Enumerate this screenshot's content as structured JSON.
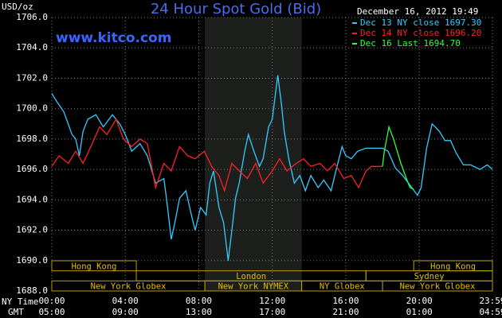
{
  "chart_data": {
    "type": "line",
    "title": "24 Hour Spot Gold (Bid)",
    "ylabel": "USD/oz",
    "timestamp": "December 16, 2012 19:49",
    "watermark": "www.kitco.com",
    "xlabel": "NY Time",
    "x2label": "GMT",
    "xlim": [
      0,
      23.983
    ],
    "xticks": [
      {
        "value": 0,
        "label": "00:00"
      },
      {
        "value": 4,
        "label": "04:00"
      },
      {
        "value": 8,
        "label": "08:00"
      },
      {
        "value": 12,
        "label": "12:00"
      },
      {
        "value": 16,
        "label": "16:00"
      },
      {
        "value": 20,
        "label": "20:00"
      },
      {
        "value": 23.983,
        "label": "23:59"
      }
    ],
    "x2ticks": [
      {
        "value": 0,
        "label": "05:00"
      },
      {
        "value": 4,
        "label": "09:00"
      },
      {
        "value": 8,
        "label": "13:00"
      },
      {
        "value": 12,
        "label": "17:00"
      },
      {
        "value": 16,
        "label": "21:00"
      },
      {
        "value": 20,
        "label": "01:00"
      },
      {
        "value": 23.983,
        "label": "04:59"
      }
    ],
    "ylim": [
      1688,
      1706
    ],
    "yticks": [
      {
        "value": 1688,
        "label": "1688.0"
      },
      {
        "value": 1690,
        "label": "1690.0"
      },
      {
        "value": 1692,
        "label": "1692.0"
      },
      {
        "value": 1694,
        "label": "1694.0"
      },
      {
        "value": 1696,
        "label": "1696.0"
      },
      {
        "value": 1698,
        "label": "1698.0"
      },
      {
        "value": 1700,
        "label": "1700.0"
      },
      {
        "value": 1702,
        "label": "1702.0"
      },
      {
        "value": 1704,
        "label": "1704.0"
      },
      {
        "value": 1706,
        "label": "1706.0"
      }
    ],
    "grid": true,
    "highlight_xlim": [
      8.33,
      13.6
    ],
    "sessions": [
      [
        {
          "label": "Hong Kong",
          "start": 0,
          "end": 4.6
        },
        {
          "label": "Hong Kong",
          "start": 19.7,
          "end": 23.983
        }
      ],
      [
        {
          "label": "London",
          "start": 4.6,
          "end": 17.1
        },
        {
          "label": "Sydney",
          "start": 17.1,
          "end": 23.983
        }
      ],
      [
        {
          "label": "New York Globex",
          "start": 0,
          "end": 8.33
        },
        {
          "label": "New York NYMEX",
          "start": 8.33,
          "end": 13.6
        },
        {
          "label": "NY Globex",
          "start": 13.6,
          "end": 18.0
        },
        {
          "label": "New York Globex",
          "start": 18.0,
          "end": 23.983
        }
      ]
    ],
    "series": [
      {
        "name": "Dec 13 NY close 1697.30",
        "color": "#33ccff",
        "x": [
          0,
          0.2,
          0.65,
          1.1,
          1.3,
          1.5,
          1.7,
          1.96,
          2.4,
          2.8,
          3.3,
          3.7,
          4.0,
          4.35,
          4.8,
          5.2,
          5.65,
          6.1,
          6.3,
          6.5,
          6.7,
          6.95,
          7.3,
          7.6,
          7.8,
          8.1,
          8.4,
          8.6,
          8.8,
          9.1,
          9.35,
          9.6,
          9.8,
          10.0,
          10.2,
          10.5,
          10.7,
          11.0,
          11.3,
          11.5,
          11.8,
          12.0,
          12.3,
          12.5,
          12.65,
          12.9,
          13.2,
          13.5,
          13.8,
          14.1,
          14.5,
          14.8,
          15.2,
          15.4,
          15.8,
          16.0,
          16.3,
          16.65,
          17.1,
          18.0,
          18.3,
          18.7,
          19.1,
          19.6,
          19.9,
          20.1,
          20.4,
          20.7,
          21.1,
          21.4,
          21.7,
          22.0,
          22.4,
          22.8,
          23.3,
          23.7,
          23.983
        ],
        "values": [
          1701.0,
          1700.6,
          1699.8,
          1698.3,
          1698.0,
          1696.9,
          1698.5,
          1699.3,
          1699.6,
          1698.8,
          1699.6,
          1699.0,
          1698.3,
          1697.2,
          1697.7,
          1696.9,
          1695.1,
          1695.4,
          1693.5,
          1691.4,
          1692.5,
          1694.1,
          1694.6,
          1693.0,
          1692.0,
          1693.5,
          1693.0,
          1695.1,
          1695.9,
          1693.5,
          1692.5,
          1690.0,
          1692.0,
          1694.1,
          1695.1,
          1697.2,
          1698.3,
          1697.2,
          1696.2,
          1696.7,
          1698.8,
          1699.3,
          1702.2,
          1700.3,
          1698.5,
          1696.7,
          1695.1,
          1695.6,
          1694.6,
          1695.6,
          1694.8,
          1695.3,
          1694.6,
          1695.6,
          1697.5,
          1696.9,
          1696.7,
          1697.2,
          1697.4,
          1697.4,
          1697.2,
          1696.1,
          1695.6,
          1694.8,
          1694.3,
          1694.8,
          1697.4,
          1699.0,
          1698.5,
          1697.9,
          1697.9,
          1697.1,
          1696.3,
          1696.3,
          1696.0,
          1696.3,
          1696.0
        ]
      },
      {
        "name": "Dec 14 NY close 1696.20",
        "color": "#ff2020",
        "x": [
          0,
          0.4,
          0.9,
          1.3,
          1.7,
          2.2,
          2.6,
          3.0,
          3.5,
          3.9,
          4.35,
          4.8,
          5.2,
          5.65,
          6.1,
          6.5,
          6.95,
          7.4,
          7.8,
          8.3,
          8.7,
          9.1,
          9.4,
          9.8,
          10.2,
          10.65,
          11.1,
          11.5,
          12.0,
          12.4,
          12.8,
          13.3,
          13.7,
          14.1,
          14.6,
          15.0,
          15.4,
          15.9,
          16.3,
          16.7,
          17.1,
          17.4,
          18.0
        ],
        "values": [
          1696.2,
          1696.9,
          1696.4,
          1697.2,
          1696.4,
          1697.7,
          1698.8,
          1698.3,
          1699.3,
          1698.0,
          1697.5,
          1698.0,
          1697.7,
          1694.8,
          1696.4,
          1695.9,
          1697.5,
          1696.9,
          1696.7,
          1697.2,
          1696.2,
          1695.6,
          1694.6,
          1696.4,
          1695.9,
          1695.4,
          1696.4,
          1695.1,
          1695.9,
          1696.7,
          1695.9,
          1696.4,
          1696.7,
          1696.2,
          1696.4,
          1695.9,
          1696.4,
          1695.4,
          1695.6,
          1694.8,
          1695.9,
          1696.2,
          1696.2
        ]
      },
      {
        "name": "Dec 16 Last 1694.70",
        "color": "#33ff33",
        "x": [
          18.0,
          18.1,
          18.35,
          18.6,
          18.8,
          19.0,
          19.3,
          19.5,
          19.7
        ],
        "values": [
          1696.2,
          1697.2,
          1698.8,
          1698.0,
          1697.2,
          1696.4,
          1695.4,
          1694.8,
          1694.7
        ]
      }
    ]
  }
}
